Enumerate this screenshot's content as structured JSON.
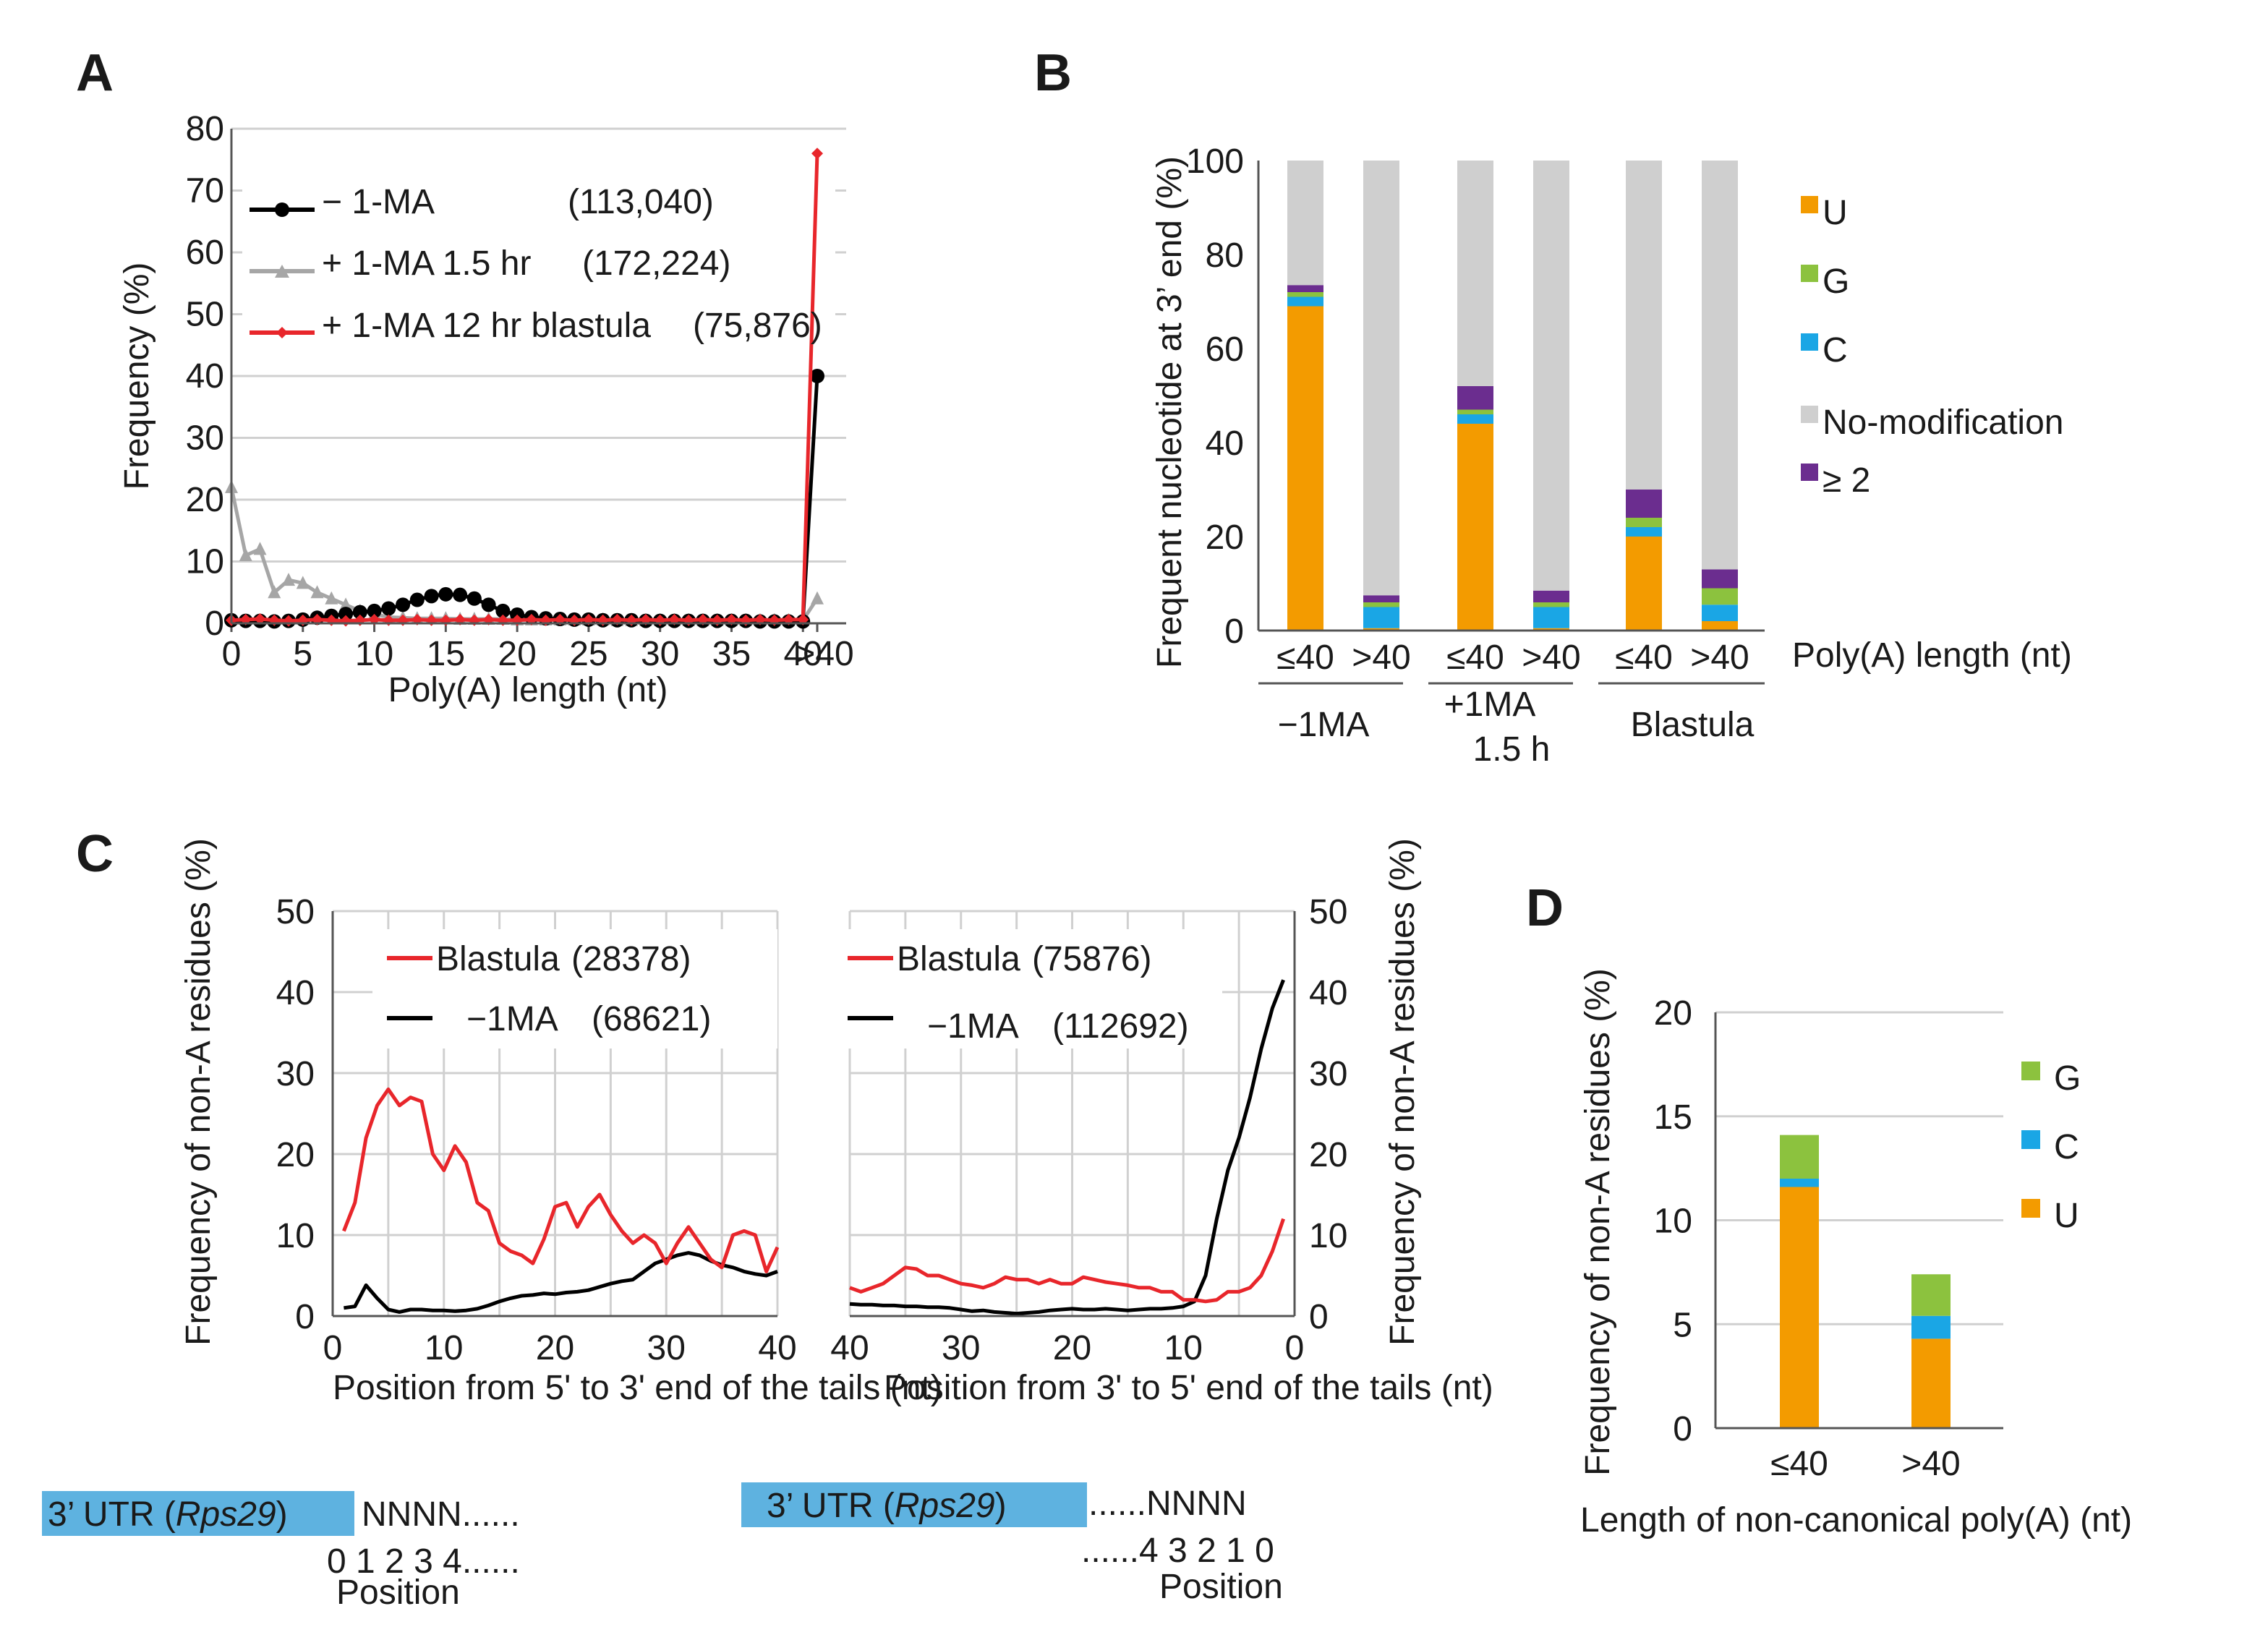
{
  "colors": {
    "black_series": "#000000",
    "gray_series": "#a6a6a6",
    "red_series": "#e8262b",
    "U": "#f39b00",
    "G": "#8cc23e",
    "C": "#1aa6e5",
    "no_modification": "#cfcfcf",
    "ge2": "#6b2d8f",
    "utr_box": "#5eb2e0",
    "grid": "#d0d0d0"
  },
  "panel_labels": {
    "A": "A",
    "B": "B",
    "C": "C",
    "D": "D"
  },
  "chart_data": [
    {
      "id": "A",
      "type": "line",
      "xlabel": "Poly(A) length (nt)",
      "ylabel": "Frequency (%)",
      "ylim": [
        0,
        80
      ],
      "yticks": [
        0,
        10,
        20,
        30,
        40,
        50,
        60,
        70,
        80
      ],
      "xticklabels": [
        "0",
        "5",
        "10",
        "15",
        "20",
        "25",
        "30",
        "35",
        "40",
        ">40"
      ],
      "x": [
        0,
        1,
        2,
        3,
        4,
        5,
        6,
        7,
        8,
        9,
        10,
        11,
        12,
        13,
        14,
        15,
        16,
        17,
        18,
        19,
        20,
        21,
        22,
        23,
        24,
        25,
        26,
        27,
        28,
        29,
        30,
        31,
        32,
        33,
        34,
        35,
        36,
        37,
        38,
        39,
        40,
        41
      ],
      "series": [
        {
          "name": "− 1-MA",
          "count": "(113,040)",
          "color_key": "black_series",
          "values": [
            0.5,
            0.4,
            0.4,
            0.3,
            0.4,
            0.6,
            0.9,
            1.2,
            1.5,
            1.8,
            2.0,
            2.4,
            3.0,
            3.8,
            4.4,
            4.7,
            4.6,
            4.0,
            3.0,
            2.0,
            1.4,
            1.0,
            0.8,
            0.7,
            0.6,
            0.6,
            0.5,
            0.5,
            0.5,
            0.4,
            0.4,
            0.4,
            0.4,
            0.4,
            0.4,
            0.4,
            0.4,
            0.3,
            0.3,
            0.3,
            0.3,
            40
          ]
        },
        {
          "name": "+ 1-MA 1.5 hr",
          "count": "(172,224)",
          "color_key": "gray_series",
          "values": [
            22,
            11,
            12,
            5,
            7,
            6.5,
            5,
            4,
            3,
            2,
            1.5,
            1,
            0.9,
            0.8,
            0.8,
            0.8,
            0.7,
            0.7,
            0.7,
            0.7,
            0.6,
            0.6,
            0.6,
            0.6,
            0.6,
            0.6,
            0.6,
            0.5,
            0.5,
            0.5,
            0.5,
            0.5,
            0.5,
            0.5,
            0.5,
            0.5,
            0.5,
            0.5,
            0.5,
            0.5,
            0.5,
            4
          ]
        },
        {
          "name": "+ 1-MA  12 hr  blastula",
          "count": "(75,876)",
          "color_key": "red_series",
          "values": [
            0.5,
            0.6,
            0.7,
            0.5,
            0.4,
            0.5,
            0.6,
            0.5,
            0.4,
            0.5,
            0.6,
            0.5,
            0.5,
            0.6,
            0.5,
            0.5,
            0.6,
            0.5,
            0.6,
            0.5,
            0.5,
            0.6,
            0.5,
            0.6,
            0.5,
            0.6,
            0.5,
            0.6,
            0.5,
            0.6,
            0.5,
            0.6,
            0.5,
            0.6,
            0.5,
            0.6,
            0.5,
            0.6,
            0.5,
            0.6,
            0.6,
            76
          ]
        }
      ]
    },
    {
      "id": "B",
      "type": "bar",
      "stacked": true,
      "ylabel": "Frequent nucleotide at 3’ end  (%)",
      "xlabel": "Poly(A) length (nt)",
      "ylim": [
        0,
        100
      ],
      "yticks": [
        0,
        20,
        40,
        60,
        80,
        100
      ],
      "categories": [
        "≤40",
        ">40",
        "≤40",
        ">40",
        "≤40",
        ">40"
      ],
      "groups": [
        {
          "label_lines": [
            "−1MA"
          ]
        },
        {
          "label_lines": [
            "+1MA",
            "1.5 h"
          ]
        },
        {
          "label_lines": [
            "Blastula"
          ]
        }
      ],
      "series": [
        {
          "name": "U",
          "color_key": "U",
          "values": [
            69,
            0.5,
            44,
            0.5,
            20,
            2
          ]
        },
        {
          "name": "C",
          "color_key": "C",
          "values": [
            2,
            4.5,
            2,
            4.5,
            2,
            3.5
          ]
        },
        {
          "name": "G",
          "color_key": "G",
          "values": [
            1,
            1,
            1,
            1,
            2,
            3.5
          ]
        },
        {
          "name": "≥ 2",
          "color_key": "ge2",
          "values": [
            1.5,
            1.5,
            5,
            2.5,
            6,
            4
          ]
        },
        {
          "name": "No-modification",
          "color_key": "no_modification",
          "values": [
            26.5,
            92.5,
            48,
            91.5,
            70,
            87
          ]
        }
      ],
      "legend_order": [
        "U",
        "G",
        "C",
        "No-modification",
        "≥ 2"
      ]
    },
    {
      "id": "C-left",
      "type": "line",
      "ylabel": "Frequency of non-A residues (%)",
      "xlabel": "Position from 5' to 3' end of the tails (nt)",
      "ylim": [
        0,
        50
      ],
      "yticks": [
        0,
        10,
        20,
        30,
        40,
        50
      ],
      "xlim": [
        0,
        40
      ],
      "xticks": [
        0,
        10,
        20,
        30,
        40
      ],
      "x": [
        1,
        2,
        3,
        4,
        5,
        6,
        7,
        8,
        9,
        10,
        11,
        12,
        13,
        14,
        15,
        16,
        17,
        18,
        19,
        20,
        21,
        22,
        23,
        24,
        25,
        26,
        27,
        28,
        29,
        30,
        31,
        32,
        33,
        34,
        35,
        36,
        37,
        38,
        39,
        40
      ],
      "series": [
        {
          "name": "Blastula",
          "count": "(28378)",
          "color_key": "red_series",
          "values": [
            10.5,
            14,
            22,
            26,
            28,
            26,
            27,
            26.5,
            20,
            18,
            21,
            19,
            14,
            13,
            9,
            8,
            7.5,
            6.5,
            9.5,
            13.5,
            14,
            11,
            13.5,
            15,
            12.5,
            10.5,
            9,
            10,
            9,
            6.5,
            9,
            11,
            9,
            7,
            6,
            10,
            10.5,
            10,
            5.5,
            8.5
          ]
        },
        {
          "name": "−1MA",
          "count": "(68621)",
          "color_key": "black_series",
          "values": [
            1,
            1.2,
            3.8,
            2.2,
            0.8,
            0.5,
            0.8,
            0.8,
            0.7,
            0.7,
            0.6,
            0.7,
            0.9,
            1.3,
            1.8,
            2.2,
            2.5,
            2.6,
            2.8,
            2.7,
            2.9,
            3,
            3.2,
            3.6,
            4,
            4.3,
            4.5,
            5.5,
            6.5,
            7,
            7.5,
            7.8,
            7.5,
            6.8,
            6.3,
            6,
            5.5,
            5.2,
            5,
            5.5
          ]
        }
      ]
    },
    {
      "id": "C-right",
      "type": "line",
      "ylabel": "Frequency of non-A residues (%)",
      "xlabel": "Position from 3' to 5' end of the tails (nt)",
      "ylim": [
        0,
        50
      ],
      "yticks": [
        0,
        10,
        20,
        30,
        40,
        50
      ],
      "xlim": [
        40,
        0
      ],
      "xticks": [
        40,
        30,
        20,
        10,
        0
      ],
      "x": [
        40,
        39,
        38,
        37,
        36,
        35,
        34,
        33,
        32,
        31,
        30,
        29,
        28,
        27,
        26,
        25,
        24,
        23,
        22,
        21,
        20,
        19,
        18,
        17,
        16,
        15,
        14,
        13,
        12,
        11,
        10,
        9,
        8,
        7,
        6,
        5,
        4,
        3,
        2,
        1
      ],
      "series": [
        {
          "name": "Blastula",
          "count": "(75876)",
          "color_key": "red_series",
          "values": [
            3.5,
            3,
            3.5,
            4,
            5,
            6,
            5.8,
            5,
            5,
            4.5,
            4,
            3.8,
            3.5,
            4,
            4.8,
            4.5,
            4.5,
            4,
            4.5,
            4,
            4,
            4.8,
            4.5,
            4.2,
            4,
            3.8,
            3.5,
            3.5,
            3,
            3,
            2,
            2,
            1.8,
            2,
            3,
            3,
            3.5,
            5,
            8,
            12
          ]
        },
        {
          "name": "−1MA",
          "count": "(112692)",
          "color_key": "black_series",
          "values": [
            1.5,
            1.4,
            1.4,
            1.3,
            1.3,
            1.2,
            1.2,
            1.1,
            1.1,
            1,
            0.8,
            0.6,
            0.7,
            0.5,
            0.4,
            0.3,
            0.4,
            0.5,
            0.7,
            0.8,
            0.9,
            0.8,
            0.8,
            0.9,
            0.8,
            0.7,
            0.8,
            0.9,
            0.9,
            1,
            1.2,
            1.8,
            5,
            12,
            18,
            22,
            27,
            33,
            38,
            41.5
          ]
        }
      ]
    },
    {
      "id": "D",
      "type": "bar",
      "stacked": true,
      "ylabel": "Frequency of non-A residues (%)",
      "xlabel": "Length of non-canonical poly(A) (nt)",
      "ylim": [
        0,
        20
      ],
      "yticks": [
        0,
        5,
        10,
        15,
        20
      ],
      "categories": [
        "≤40",
        ">40"
      ],
      "series": [
        {
          "name": "U",
          "color_key": "U",
          "values": [
            11.6,
            4.3
          ]
        },
        {
          "name": "C",
          "color_key": "C",
          "values": [
            0.4,
            1.1
          ]
        },
        {
          "name": "G",
          "color_key": "G",
          "values": [
            2.1,
            2
          ]
        }
      ],
      "legend_order": [
        "G",
        "C",
        "U"
      ]
    }
  ],
  "schematics": {
    "left": {
      "utr_prefix": "3’  UTR (",
      "utr_gene": "Rps29",
      "utr_suffix": ")",
      "seq": "NNNN......",
      "positions": "0 1 2 3 4......",
      "position_label": "Position"
    },
    "right": {
      "utr_prefix": "3’  UTR (",
      "utr_gene": "Rps29",
      "utr_suffix": ")",
      "seq": "......NNNN",
      "positions": "......4  3  2  1  0",
      "position_label": "Position"
    }
  }
}
